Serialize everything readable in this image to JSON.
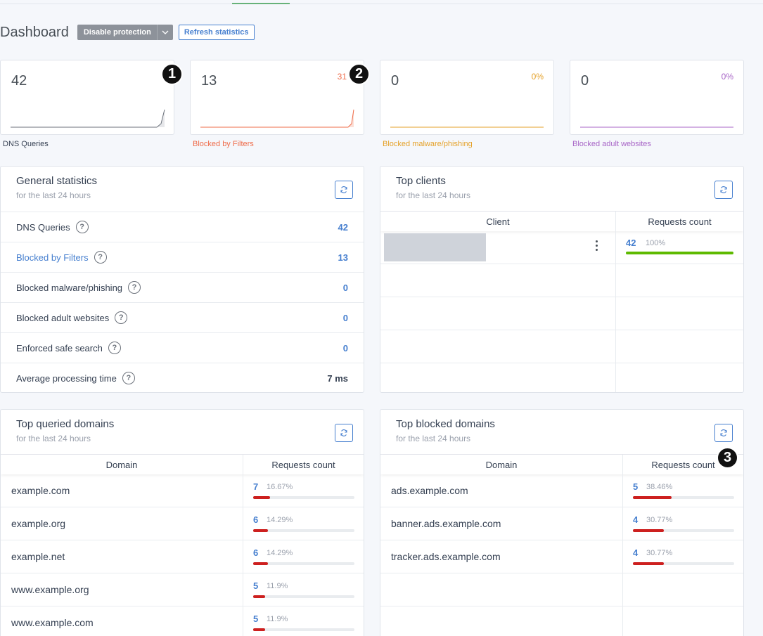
{
  "header": {
    "title": "Dashboard",
    "disable_label": "Disable protection",
    "refresh_label": "Refresh statistics"
  },
  "colors": {
    "accent": "#467fcf",
    "queries": "#6c727b",
    "filters": "#ef6c4a",
    "malware": "#e5a22a",
    "adult": "#a866c7",
    "bar": "#cd201f",
    "clients_bar": "#5eba00"
  },
  "badges": [
    "1",
    "2",
    "3"
  ],
  "stats": [
    {
      "value": "42",
      "percent": "",
      "label": "DNS Queries"
    },
    {
      "value": "13",
      "percent": "31",
      "label": "Blocked by Filters"
    },
    {
      "value": "0",
      "percent": "0%",
      "label": "Blocked malware/phishing"
    },
    {
      "value": "0",
      "percent": "0%",
      "label": "Blocked adult websites"
    }
  ],
  "general": {
    "title": "General statistics",
    "subtitle": "for the last 24 hours",
    "rows": [
      {
        "label": "DNS Queries",
        "value": "42"
      },
      {
        "label": "Blocked by Filters",
        "value": "13"
      },
      {
        "label": "Blocked malware/phishing",
        "value": "0"
      },
      {
        "label": "Blocked adult websites",
        "value": "0"
      },
      {
        "label": "Enforced safe search",
        "value": "0"
      },
      {
        "label": "Average processing time",
        "value": "7 ms"
      }
    ],
    "help": "?"
  },
  "clients": {
    "title": "Top clients",
    "subtitle": "for the last 24 hours",
    "col_client": "Client",
    "col_count": "Requests count",
    "rows": [
      {
        "count": "42",
        "percent": "100%",
        "fraction": 1.0
      }
    ]
  },
  "queried": {
    "title": "Top queried domains",
    "subtitle": "for the last 24 hours",
    "col_domain": "Domain",
    "col_count": "Requests count",
    "rows": [
      {
        "domain": "example.com",
        "count": "7",
        "percent": "16.67%",
        "fraction": 0.1667
      },
      {
        "domain": "example.org",
        "count": "6",
        "percent": "14.29%",
        "fraction": 0.1429
      },
      {
        "domain": "example.net",
        "count": "6",
        "percent": "14.29%",
        "fraction": 0.1429
      },
      {
        "domain": "www.example.org",
        "count": "5",
        "percent": "11.9%",
        "fraction": 0.119
      },
      {
        "domain": "www.example.com",
        "count": "5",
        "percent": "11.9%",
        "fraction": 0.119
      }
    ]
  },
  "blocked": {
    "title": "Top blocked domains",
    "subtitle": "for the last 24 hours",
    "col_domain": "Domain",
    "col_count": "Requests count",
    "rows": [
      {
        "domain": "ads.example.com",
        "count": "5",
        "percent": "38.46%",
        "fraction": 0.3846
      },
      {
        "domain": "banner.ads.example.com",
        "count": "4",
        "percent": "30.77%",
        "fraction": 0.3077
      },
      {
        "domain": "tracker.ads.example.com",
        "count": "4",
        "percent": "30.77%",
        "fraction": 0.3077
      }
    ]
  }
}
